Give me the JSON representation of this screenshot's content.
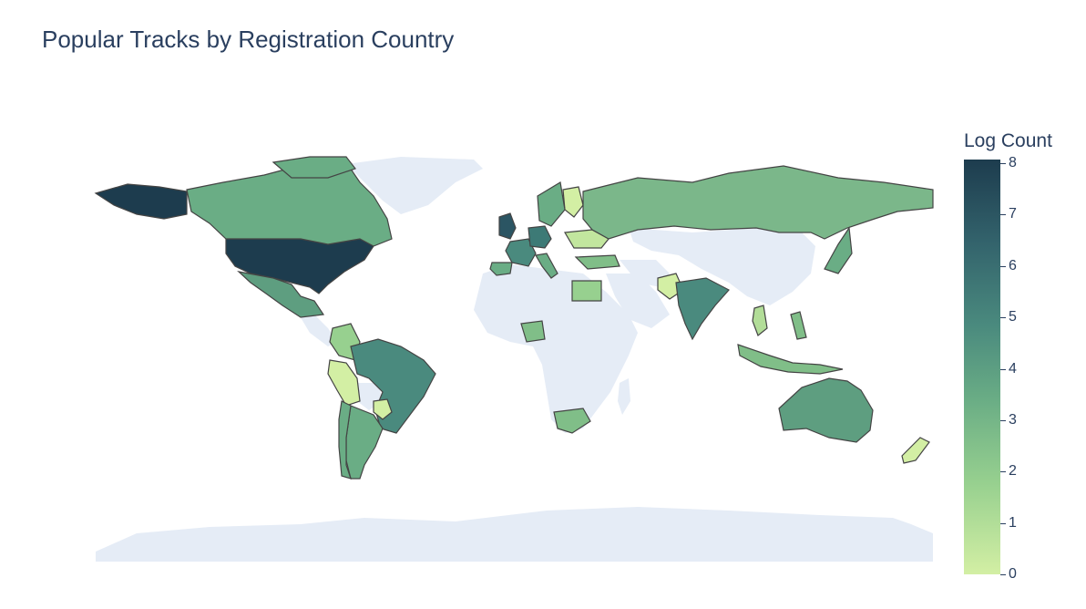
{
  "title": "Popular Tracks by Registration Country",
  "colorbar": {
    "title": "Log Count",
    "ticks": [
      "8",
      "7",
      "6",
      "5",
      "4",
      "3",
      "2",
      "1",
      "0"
    ],
    "range": [
      0,
      8
    ]
  },
  "colors": {
    "land": "#e5ecf6",
    "border": "#444444",
    "low": "#d3efa4",
    "high": "#1d3c4e"
  },
  "map_data": {
    "type": "choropleth",
    "metric": "Log Count",
    "countries": [
      {
        "name": "United States",
        "value": 8
      },
      {
        "name": "United Kingdom",
        "value": 7
      },
      {
        "name": "Brazil",
        "value": 5
      },
      {
        "name": "India",
        "value": 5
      },
      {
        "name": "France",
        "value": 5
      },
      {
        "name": "Germany",
        "value": 5
      },
      {
        "name": "Canada",
        "value": 3.5
      },
      {
        "name": "Mexico",
        "value": 3.5
      },
      {
        "name": "Australia",
        "value": 3.5
      },
      {
        "name": "Russia",
        "value": 3
      },
      {
        "name": "Argentina",
        "value": 3
      },
      {
        "name": "Japan",
        "value": 3
      },
      {
        "name": "Spain",
        "value": 3
      },
      {
        "name": "Sweden",
        "value": 3
      },
      {
        "name": "Indonesia",
        "value": 2.5
      },
      {
        "name": "South Africa",
        "value": 2.5
      },
      {
        "name": "Nigeria",
        "value": 2.5
      },
      {
        "name": "Egypt",
        "value": 2
      },
      {
        "name": "Colombia",
        "value": 2
      },
      {
        "name": "Turkey",
        "value": 2.5
      },
      {
        "name": "Philippines",
        "value": 2.5
      },
      {
        "name": "Vietnam",
        "value": 1.5
      },
      {
        "name": "Peru",
        "value": 1
      },
      {
        "name": "Pakistan",
        "value": 1
      },
      {
        "name": "Finland",
        "value": 0.5
      },
      {
        "name": "New Zealand",
        "value": 0.5
      },
      {
        "name": "Paraguay",
        "value": 0.5
      },
      {
        "name": "Ukraine",
        "value": 1
      }
    ]
  }
}
